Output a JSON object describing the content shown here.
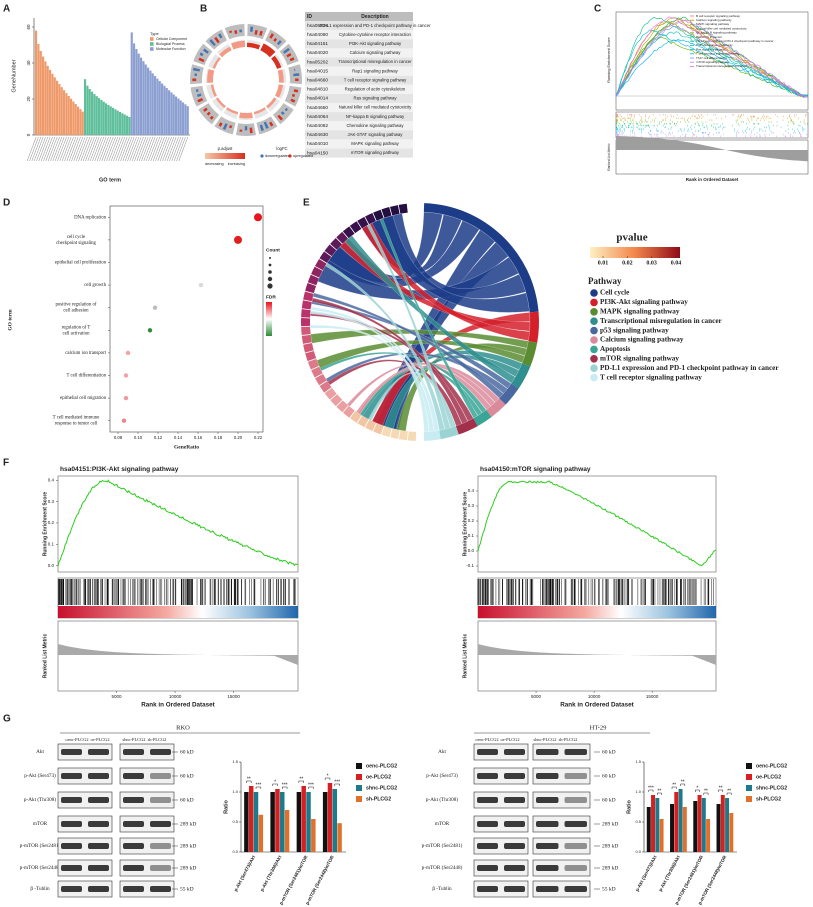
{
  "figure": {
    "A": {
      "label": "A",
      "y_label": "GeneNumber",
      "x_label": "GO term",
      "ylim": [
        0,
        65
      ],
      "yticks": [
        0,
        20,
        40,
        60
      ],
      "legend_title": "Type",
      "legend": [
        {
          "name": "Cellular Component",
          "color": "#ef9a6b"
        },
        {
          "name": "Biological Process",
          "color": "#5fbf9b"
        },
        {
          "name": "Molecular Function",
          "color": "#8c9fd1"
        }
      ]
    },
    "B": {
      "label": "B",
      "table": {
        "header": [
          "ID",
          "Description"
        ],
        "rows": [
          [
            "hsa05235",
            "PD-L1 expression and PD-1 checkpoint pathway in cancer"
          ],
          [
            "hsa04060",
            "Cytokine-cytokine receptor interaction"
          ],
          [
            "hsa04151",
            "PI3K-Akt signaling pathway"
          ],
          [
            "hsa04020",
            "Calcium signaling pathway"
          ],
          [
            "hsa05202",
            "Transcriptional misregulation in cancer"
          ],
          [
            "hsa04015",
            "Rap1 signaling pathway"
          ],
          [
            "hsa04660",
            "T cell receptor signaling pathway"
          ],
          [
            "hsa04810",
            "Regulation of actin cytoskeleton"
          ],
          [
            "hsa04014",
            "Ras signaling pathway"
          ],
          [
            "hsa04650",
            "Natural killer cell mediated cytotoxicity"
          ],
          [
            "hsa04064",
            "NF-kappa B signaling pathway"
          ],
          [
            "hsa04062",
            "Chemokine signaling pathway"
          ],
          [
            "hsa04630",
            "JAK-STAT signaling pathway"
          ],
          [
            "hsa04010",
            "MAPK signaling pathway"
          ],
          [
            "hsa04150",
            "mTOR signaling pathway"
          ]
        ]
      },
      "legend": {
        "p_adjust": "p.adjust",
        "decreasing": "decreasing",
        "increasing": "increasing",
        "logfc": "logFC",
        "down": "downregulated",
        "up": "upregulated"
      }
    },
    "C": {
      "label": "C",
      "y_label": "Running Enrichment Score",
      "y2_label": "Ranked List Metric",
      "x_label": "Rank in Ordered Dataset",
      "legend": [
        "B cell receptor signaling pathway",
        "Calcium signaling pathway",
        "MAPK signaling pathway",
        "Natural killer cell mediated cytotoxicity",
        "NF-kappa B signaling pathway",
        "Pathways in cancer",
        "PD-L1 expression and PD-1 checkpoint pathway in cancer",
        "PI3K-Akt signaling pathway",
        "Ras signaling pathway",
        "T cell receptor signaling pathway",
        "Th17 cell differentiation",
        "mTOR signaling pathway",
        "Transcriptional misregulation in cancer"
      ]
    },
    "D": {
      "label": "D",
      "type": "dot",
      "y_label": "GO term",
      "x_label": "GeneRatio",
      "categories": [
        "DNA replication",
        "cell cycle checkpoint signaling",
        "epithelial cell proliferation",
        "cell growth",
        "positive regulation of cell adhesion",
        "regulation of T cell activation",
        "calcium ion transport",
        "T cell differentiation",
        "epithelial cell migration",
        "T cell mediated immune response to tumor cell"
      ],
      "values": [
        0.22,
        0.2,
        null,
        0.163,
        0.117,
        0.112,
        0.09,
        0.088,
        0.088,
        0.086
      ],
      "colors": [
        "#e8141c",
        "#e0201f",
        null,
        "#d9d9d9",
        "#bdbdbd",
        "#2e8b3a",
        "#f1a3a8",
        "#f3a0a6",
        "#ef9aa0",
        "#e9888f"
      ],
      "xlim": [
        0.072,
        0.225
      ],
      "xticks": [
        0.08,
        {
          "value": 0.1,
          "label": "0.10"
        },
        0.12,
        0.14,
        0.16,
        0.18,
        {
          "value": 0.2,
          "label": "0.20"
        },
        0.22
      ],
      "count_title": "Count",
      "fdr_title": "FDR"
    },
    "E": {
      "label": "E",
      "pvalue_title": "pvalue",
      "pvalue_ticks": [
        0.01,
        0.02,
        0.03,
        0.04
      ],
      "pathway_title": "Pathway",
      "pathways": [
        {
          "name": "Cell cycle",
          "color": "#1c3c88"
        },
        {
          "name": "PI3K-Akt signaling pathway",
          "color": "#d3202b"
        },
        {
          "name": "MAPK signaling pathway",
          "color": "#5b8c31"
        },
        {
          "name": "Transcriptional misregulation in cancer",
          "color": "#2f8e8e"
        },
        {
          "name": "p53 signaling pathway",
          "color": "#4a68a0"
        },
        {
          "name": "Calcium signaling pathway",
          "color": "#da8b9b"
        },
        {
          "name": "Apoptosis",
          "color": "#3aa596"
        },
        {
          "name": "mTOR signaling pathway",
          "color": "#a3304b"
        },
        {
          "name": "PD-L1 expression and PD-1 checkpoint pathway in cancer",
          "color": "#9bd3d3"
        },
        {
          "name": "T cell receptor signaling pathway",
          "color": "#c8ecf2"
        }
      ]
    },
    "F": {
      "label": "F",
      "plots": [
        {
          "title": "hsa04151:PI3K-Akt signaling pathway",
          "y_label": "Running Enrichment Score",
          "y2_label": "Ranked List Metric",
          "x_label": "Rank in Ordered Dataset",
          "ylim": [
            -0.03,
            0.42
          ],
          "yticks": [
            {
              "value": 0,
              "label": "0.0"
            },
            0.1,
            0.2,
            0.3,
            0.4
          ],
          "xlim": [
            0,
            20500
          ],
          "xticks": [
            5000,
            10000,
            15000
          ]
        },
        {
          "title": "hsa04150:mTOR signaling pathway",
          "y_label": "Running Enrichment Score",
          "y2_label": "Ranked List Metric",
          "x_label": "Rank in Ordered Dataset",
          "ylim": [
            -0.14,
            0.5
          ],
          "yticks": [
            -0.1,
            {
              "value": 0,
              "label": "0.0"
            },
            0.1,
            0.2,
            0.3,
            0.4
          ],
          "xlim": [
            0,
            20500
          ],
          "xticks": [
            5000,
            10000,
            15000
          ]
        }
      ]
    },
    "G": {
      "label": "G",
      "blots": [
        {
          "title": "RKO",
          "lanes": [
            "oenc-PLCG2",
            "oe-PLCG2",
            "shnc-PLCG2",
            "sh-PLCG2"
          ],
          "rows": [
            {
              "name": "Akt",
              "size": "60 kD"
            },
            {
              "name": "p-Akt (Ser473)",
              "size": "60 kD"
            },
            {
              "name": "p-Akt (Thr308)",
              "size": "60 kD"
            },
            {
              "name": "mTOR",
              "size": "289 kD"
            },
            {
              "name": "p-mTOR (Ser2481)",
              "size": "289 kD"
            },
            {
              "name": "p-mTOR (Ser2448)",
              "size": "289 kD"
            },
            {
              "name": "β -Tublin",
              "size": "55 kD"
            }
          ]
        },
        {
          "title": "HT-29",
          "lanes": [
            "oenc-PLCG2",
            "oe-PLCG2",
            "shnc-PLCG2",
            "sh-PLCG2"
          ],
          "rows": [
            {
              "name": "Akt",
              "size": "60 kD"
            },
            {
              "name": "p-Akt (Ser473)",
              "size": "60 kD"
            },
            {
              "name": "p-Akt (Thr308)",
              "size": "60 kD"
            },
            {
              "name": "mTOR",
              "size": "289 kD"
            },
            {
              "name": "p-mTOR (Ser2481)",
              "size": "289 kD"
            },
            {
              "name": "p-mTOR (Ser2448)",
              "size": "289 kD"
            },
            {
              "name": "β -Tublin",
              "size": "55 kD"
            }
          ]
        }
      ],
      "charts": [
        {
          "type": "bar",
          "y_label": "Ratio",
          "ylim": [
            0,
            1.5
          ],
          "yticks": [
            {
              "value": 0,
              "label": "0.0"
            },
            0.5,
            {
              "value": 1,
              "label": "1.0"
            },
            1.5
          ],
          "categories": [
            "p-Akt (Ser473)/Akt",
            "p-Akt (Thr308)/Akt",
            "p-mTOR (Ser2481)/mTOR",
            "p-mTOR (Ser2448)/mTOR"
          ],
          "series": [
            {
              "name": "oenc-PLCG2",
              "color": "#111111",
              "values": [
                1.0,
                1.0,
                1.0,
                1.0
              ]
            },
            {
              "name": "oe-PLCG2",
              "color": "#d42020",
              "values": [
                1.1,
                1.05,
                1.1,
                1.15
              ]
            },
            {
              "name": "shnc-PLCG2",
              "color": "#1b7a8c",
              "values": [
                1.0,
                1.0,
                1.0,
                1.05
              ]
            },
            {
              "name": "sh-PLCG2",
              "color": "#e0702a",
              "values": [
                0.62,
                0.7,
                0.55,
                0.48
              ]
            }
          ],
          "annotations": [
            "**",
            "***",
            "*",
            "***",
            "**",
            "***",
            "*",
            "***"
          ]
        },
        {
          "type": "bar",
          "y_label": "Ratio",
          "ylim": [
            0,
            1.5
          ],
          "yticks": [
            {
              "value": 0,
              "label": "0.0"
            },
            0.5,
            {
              "value": 1,
              "label": "1.0"
            },
            1.5
          ],
          "categories": [
            "p-Akt (Ser473)/Akt",
            "p-Akt (Thr308)/Akt",
            "p-mTOR (Ser2481)/mTOR",
            "p-mTOR (Ser2448)/mTOR"
          ],
          "series": [
            {
              "name": "oenc-PLCG2",
              "color": "#111111",
              "values": [
                0.75,
                0.8,
                0.85,
                0.8
              ]
            },
            {
              "name": "oe-PLCG2",
              "color": "#d42020",
              "values": [
                0.95,
                1.0,
                0.95,
                0.95
              ]
            },
            {
              "name": "shnc-PLCG2",
              "color": "#1b7a8c",
              "values": [
                0.9,
                1.05,
                0.9,
                0.9
              ]
            },
            {
              "name": "sh-PLCG2",
              "color": "#e0702a",
              "values": [
                0.55,
                0.75,
                0.55,
                0.65
              ]
            }
          ],
          "annotations": [
            "***",
            "**",
            "**",
            "**",
            "*",
            "**",
            "**",
            "**"
          ]
        }
      ]
    }
  }
}
